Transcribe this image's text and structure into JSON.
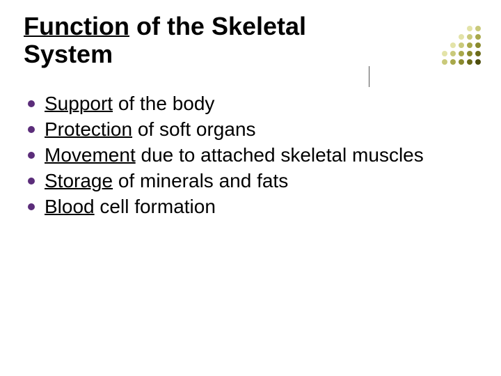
{
  "title": {
    "underlined": "Function",
    "rest": " of the Skeletal System"
  },
  "bullets": [
    {
      "lead": "Support",
      "rest": " of the body"
    },
    {
      "lead": "Protection",
      "rest": " of soft organs"
    },
    {
      "lead": "Movement",
      "rest": " due to attached skeletal muscles"
    },
    {
      "lead": "Storage",
      "rest": " of minerals and fats"
    },
    {
      "lead": "Blood",
      "rest": " cell formation"
    }
  ],
  "styling": {
    "bullet_color": "#5b2d7a",
    "title_fontsize": 36,
    "body_fontsize": 28,
    "background_color": "#ffffff"
  },
  "decoration": {
    "dot_colors": [
      [
        "",
        "",
        "",
        "#e3e3a8",
        "#c9c97a"
      ],
      [
        "",
        "",
        "#e3e3a8",
        "#c9c97a",
        "#a8a84a"
      ],
      [
        "",
        "#e3e3a8",
        "#c9c97a",
        "#a8a84a",
        "#8a8a2e"
      ],
      [
        "#e3e3a8",
        "#c9c97a",
        "#a8a84a",
        "#8a8a2e",
        "#6b6b1a"
      ],
      [
        "#c9c97a",
        "#a8a84a",
        "#8a8a2e",
        "#6b6b1a",
        "#4d4d0d"
      ]
    ]
  }
}
